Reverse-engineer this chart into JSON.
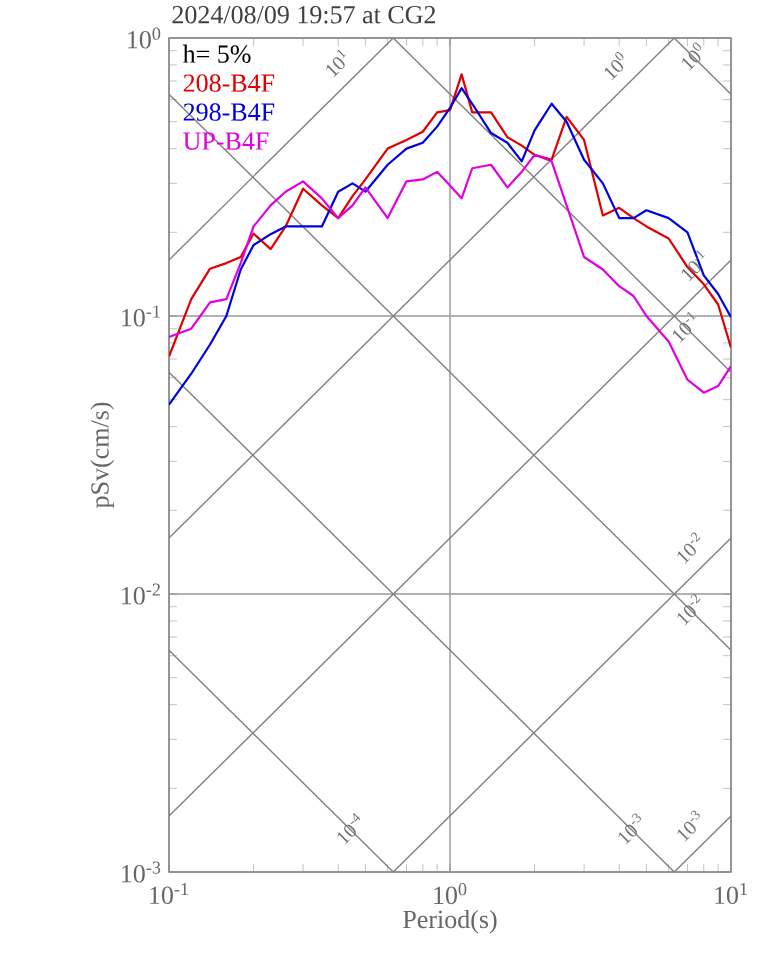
{
  "chart_data": {
    "type": "line",
    "title": "2024/08/09 19:57 at CG2",
    "xlabel": "Period(s)",
    "ylabel": "pSv(cm/s)",
    "log": "xy",
    "grid": true,
    "legend": "top left",
    "xlim": [
      0.1,
      10
    ],
    "ylim": [
      0.001,
      1
    ],
    "xticks": [
      {
        "value": 0.1,
        "label": "10$^{-1}$"
      },
      {
        "value": 1,
        "label": "10$^{0}$"
      },
      {
        "value": 10,
        "label": "10$^{1}$"
      }
    ],
    "yticks": [
      {
        "value": 0.001,
        "label": "10$^{-3}$"
      },
      {
        "value": 0.01,
        "label": "10$^{-2}$"
      },
      {
        "value": 0.1,
        "label": "10$^{-1}$"
      },
      {
        "value": 1,
        "label": "10$^{0}$"
      }
    ],
    "annotations": [
      "h= 5%",
      {
        "text": "10$^{1}$",
        "x": 0.45,
        "y": 0.716
      },
      {
        "text": "10$^{0}$",
        "x": 4.4,
        "y": 0.7
      },
      {
        "text": "10$^{0}$",
        "x": 8.3,
        "y": 0.757
      },
      {
        "text": "10$^{-1}$",
        "x": 8.4,
        "y": 0.134
      },
      {
        "text": "10$^{-1}$",
        "x": 7.8,
        "y": 0.0805
      },
      {
        "text": "10$^{-2}$",
        "x": 8.1,
        "y": 0.0129
      },
      {
        "text": "10$^{-2}$",
        "x": 8.1,
        "y": 0.00775
      },
      {
        "text": "10$^{-4}$",
        "x": 0.5,
        "y": 0.00126
      },
      {
        "text": "10$^{-3}$",
        "x": 5.0,
        "y": 0.00126
      },
      {
        "text": "10$^{-3}$",
        "x": 8.1,
        "y": 0.00129
      }
    ],
    "series": [
      {
        "color": "#808080",
        "x": [
          0.1,
          0.628
        ],
        "values": [
          0.159,
          1
        ]
      },
      {
        "color": "#808080",
        "x": [
          0.1,
          6.28
        ],
        "values": [
          0.0159,
          1
        ]
      },
      {
        "color": "#808080",
        "x": [
          0.1,
          10
        ],
        "values": [
          0.00159,
          0.159
        ]
      },
      {
        "color": "#808080",
        "x": [
          0.628,
          10
        ],
        "values": [
          0.001,
          0.0159
        ]
      },
      {
        "color": "#808080",
        "x": [
          6.28,
          10
        ],
        "values": [
          0.001,
          0.00159
        ]
      },
      {
        "color": "#808080",
        "x": [
          6.28,
          10
        ],
        "values": [
          1,
          0.628
        ]
      },
      {
        "color": "#808080",
        "x": [
          0.628,
          10
        ],
        "values": [
          1,
          0.0628
        ]
      },
      {
        "color": "#808080",
        "x": [
          0.1,
          10
        ],
        "values": [
          0.628,
          0.00628
        ]
      },
      {
        "color": "#808080",
        "x": [
          0.1,
          6.28
        ],
        "values": [
          0.0628,
          0.001
        ]
      },
      {
        "color": "#808080",
        "x": [
          0.1,
          0.628
        ],
        "values": [
          0.00628,
          0.001
        ]
      },
      {
        "name": "208-B4F",
        "color": "#e00000",
        "x": [
          0.1,
          0.12,
          0.14,
          0.16,
          0.18,
          0.2,
          0.23,
          0.26,
          0.3,
          0.35,
          0.4,
          0.45,
          0.5,
          0.6,
          0.7,
          0.8,
          0.9,
          1.0,
          1.1,
          1.2,
          1.4,
          1.6,
          1.8,
          2.0,
          2.3,
          2.6,
          3.0,
          3.5,
          4,
          4.5,
          5,
          6,
          7,
          8,
          9,
          10
        ],
        "values": [
          0.0715,
          0.115,
          0.148,
          0.155,
          0.163,
          0.198,
          0.174,
          0.21,
          0.287,
          0.25,
          0.225,
          0.27,
          0.31,
          0.4,
          0.43,
          0.46,
          0.54,
          0.55,
          0.74,
          0.54,
          0.54,
          0.44,
          0.41,
          0.38,
          0.365,
          0.52,
          0.43,
          0.23,
          0.245,
          0.225,
          0.21,
          0.19,
          0.15,
          0.13,
          0.11,
          0.077
        ]
      },
      {
        "name": "298-B4F",
        "color": "#0000e0",
        "x": [
          0.1,
          0.12,
          0.14,
          0.16,
          0.18,
          0.2,
          0.23,
          0.26,
          0.3,
          0.35,
          0.4,
          0.45,
          0.5,
          0.6,
          0.7,
          0.8,
          0.9,
          1.0,
          1.1,
          1.2,
          1.4,
          1.6,
          1.8,
          2.0,
          2.3,
          2.6,
          3.0,
          3.5,
          4,
          4.5,
          5,
          6,
          7,
          8,
          9,
          10
        ],
        "values": [
          0.048,
          0.062,
          0.079,
          0.1,
          0.147,
          0.18,
          0.197,
          0.21,
          0.21,
          0.21,
          0.28,
          0.3,
          0.28,
          0.35,
          0.4,
          0.42,
          0.48,
          0.56,
          0.66,
          0.58,
          0.455,
          0.42,
          0.36,
          0.465,
          0.58,
          0.5,
          0.365,
          0.3,
          0.225,
          0.225,
          0.24,
          0.225,
          0.2,
          0.14,
          0.12,
          0.099
        ]
      },
      {
        "name": "UP-B4F",
        "color": "#e000e0",
        "x": [
          0.1,
          0.12,
          0.14,
          0.16,
          0.18,
          0.2,
          0.23,
          0.26,
          0.3,
          0.35,
          0.4,
          0.45,
          0.5,
          0.6,
          0.7,
          0.8,
          0.9,
          1.0,
          1.1,
          1.2,
          1.4,
          1.6,
          1.8,
          2.0,
          2.3,
          2.6,
          3.0,
          3.5,
          4,
          4.5,
          5,
          6,
          7,
          8,
          9,
          10
        ],
        "values": [
          0.084,
          0.09,
          0.112,
          0.115,
          0.155,
          0.21,
          0.25,
          0.28,
          0.305,
          0.265,
          0.225,
          0.25,
          0.29,
          0.225,
          0.305,
          0.31,
          0.33,
          0.295,
          0.265,
          0.34,
          0.35,
          0.29,
          0.33,
          0.38,
          0.36,
          0.25,
          0.163,
          0.147,
          0.128,
          0.118,
          0.1,
          0.081,
          0.059,
          0.053,
          0.056,
          0.066
        ]
      }
    ]
  }
}
